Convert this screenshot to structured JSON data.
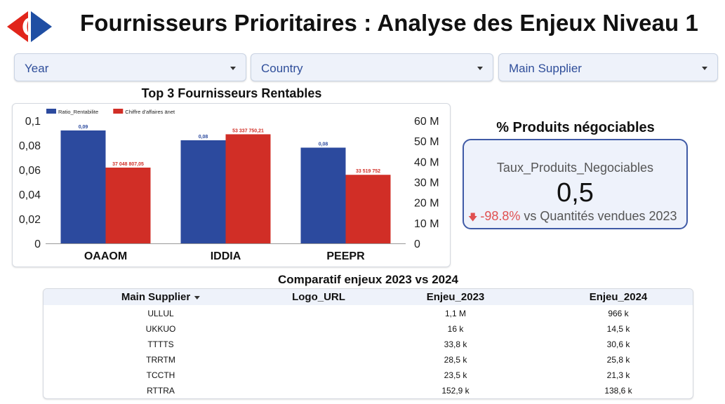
{
  "header": {
    "title": "Fournisseurs Prioritaires : Analyse des Enjeux Niveau 1",
    "logo": "carrefour-logo",
    "colors": {
      "logo_red": "#e1251b",
      "logo_blue": "#1f4ea3"
    }
  },
  "filters": [
    {
      "label": "Year"
    },
    {
      "label": "Country"
    },
    {
      "label": "Main Supplier"
    }
  ],
  "bar_chart": {
    "title": "Top 3 Fournisseurs Rentables"
  },
  "chart_data": {
    "type": "bar",
    "categories": [
      "OAAOM",
      "IDDIA",
      "PEEPR"
    ],
    "series": [
      {
        "name": "Ratio_Rentabilite",
        "axis": "left",
        "color": "#2c4a9e",
        "values": [
          0.092,
          0.084,
          0.078
        ],
        "labels": [
          "0,09",
          "0,08",
          "0,08"
        ]
      },
      {
        "name": "Chiffre d'affaires änet",
        "axis": "right",
        "color": "#d12e26",
        "values": [
          37048807.05,
          53337750.21,
          33519752
        ],
        "labels": [
          "37 048 807,05",
          "53 337 750,21",
          "33 519 752"
        ]
      }
    ],
    "left_axis": {
      "ticks": [
        "0",
        "0,02",
        "0,04",
        "0,06",
        "0,08",
        "0,1"
      ],
      "ylim": [
        0,
        0.1
      ]
    },
    "right_axis": {
      "ticks": [
        "0",
        "10 M",
        "20 M",
        "30 M",
        "40 M",
        "50 M",
        "60 M"
      ],
      "ylim": [
        0,
        60000000
      ]
    },
    "legend_position": "top-left",
    "grid": false
  },
  "kpi": {
    "section_title": "% Produits négociables",
    "label": "Taux_Produits_Negociables",
    "value": "0,5",
    "delta": "-98.8%",
    "delta_text": " vs Quantités vendues 2023",
    "delta_icon": "arrow-down-icon",
    "colors": {
      "border": "#3f5aa6",
      "negative": "#e05050"
    }
  },
  "table": {
    "title": "Comparatif enjeux 2023 vs 2024",
    "columns": [
      "Main Supplier",
      "Logo_URL",
      "Enjeu_2023",
      "Enjeu_2024"
    ],
    "rows": [
      {
        "supplier": "ULLUL",
        "logo": "",
        "e2023": "1,1 M",
        "e2024": "966 k"
      },
      {
        "supplier": "UKKUO",
        "logo": "",
        "e2023": "16 k",
        "e2024": "14,5 k"
      },
      {
        "supplier": "TTTTS",
        "logo": "",
        "e2023": "33,8 k",
        "e2024": "30,6 k"
      },
      {
        "supplier": "TRRTM",
        "logo": "",
        "e2023": "28,5 k",
        "e2024": "25,8 k"
      },
      {
        "supplier": "TCCTH",
        "logo": "",
        "e2023": "23,5 k",
        "e2024": "21,3 k"
      },
      {
        "supplier": "RTTRA",
        "logo": "",
        "e2023": "152,9 k",
        "e2024": "138,6 k"
      }
    ]
  }
}
